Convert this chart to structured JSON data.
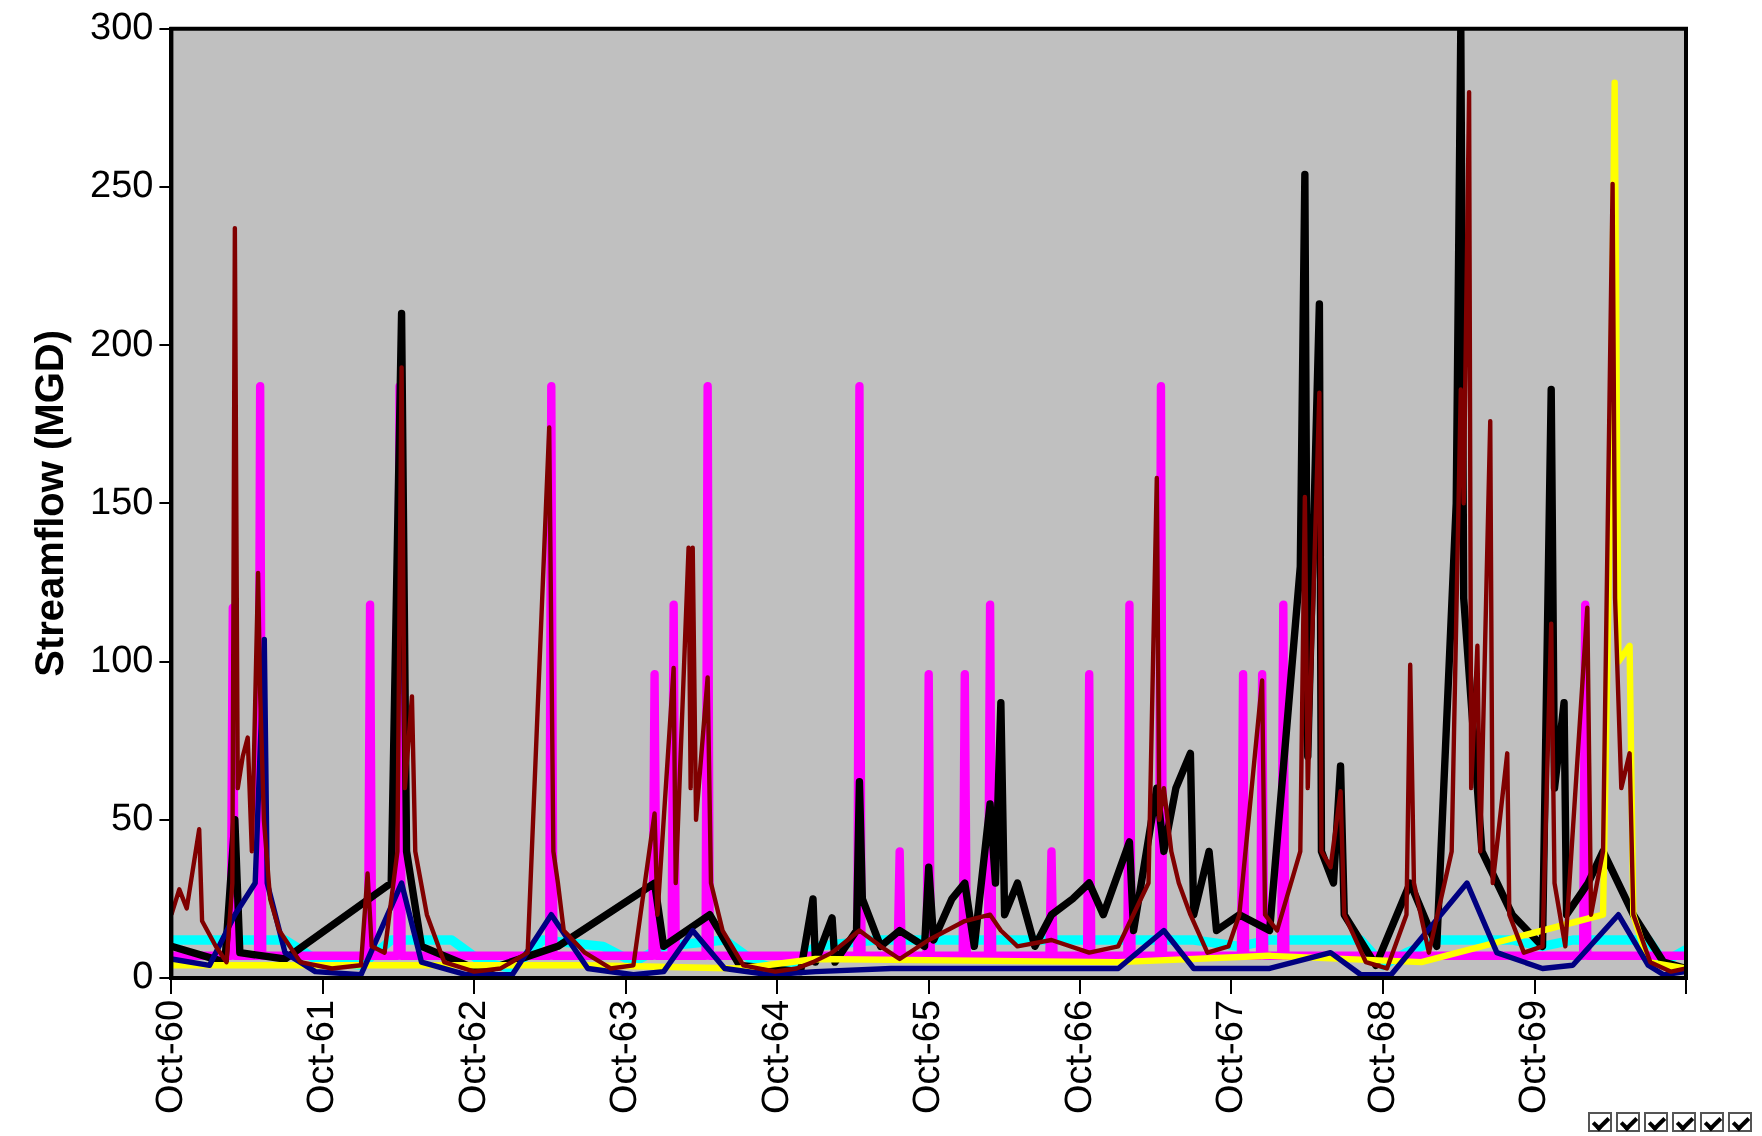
{
  "chart_data": {
    "type": "line",
    "ylabel": "Streamflow (MGD)",
    "xlim": [
      "1960-10",
      "1970-10"
    ],
    "xticks": [
      {
        "value": "1960-10",
        "label": "Oct-60"
      },
      {
        "value": "1961-10",
        "label": "Oct-61"
      },
      {
        "value": "1962-10",
        "label": "Oct-62"
      },
      {
        "value": "1963-10",
        "label": "Oct-63"
      },
      {
        "value": "1964-10",
        "label": "Oct-64"
      },
      {
        "value": "1965-10",
        "label": "Oct-65"
      },
      {
        "value": "1966-10",
        "label": "Oct-66"
      },
      {
        "value": "1967-10",
        "label": "Oct-67"
      },
      {
        "value": "1968-10",
        "label": "Oct-68"
      },
      {
        "value": "1969-10",
        "label": "Oct-69"
      },
      {
        "value": "1970-10",
        "label": null
      }
    ],
    "ylim": [
      0,
      300
    ],
    "yticks": [
      0,
      50,
      100,
      150,
      200,
      250,
      300
    ],
    "legend": false,
    "series": [
      {
        "color": "#800000",
        "x": [
          "1960-10-01",
          "1960-10-20",
          "1960-11-07",
          "1960-12-07",
          "1960-12-14",
          "1961-01-16",
          "1961-02-11",
          "1961-02-25",
          "1961-03-03",
          "1961-03-10",
          "1961-03-22",
          "1961-04-03",
          "1961-04-13",
          "1961-04-28",
          "1961-05-03",
          "1961-05-12",
          "1961-05-27",
          "1961-06-18",
          "1961-08-08",
          "1961-10-23",
          "1962-01-01",
          "1962-01-17",
          "1962-01-27",
          "1962-02-27",
          "1962-03-30",
          "1962-04-09",
          "1962-04-17",
          "1962-05-04",
          "1962-05-12",
          "1962-06-09",
          "1962-07-21",
          "1962-10-01",
          "1962-12-04",
          "1963-02-07",
          "1963-03-31",
          "1963-04-10",
          "1963-04-21",
          "1963-05-05",
          "1963-06-25",
          "1963-08-26",
          "1963-10-20",
          "1963-12-10",
          "1963-12-17",
          "1964-01-25",
          "1964-01-30",
          "1964-03-01",
          "1964-03-06",
          "1964-03-11",
          "1964-03-19",
          "1964-04-16",
          "1964-04-24",
          "1964-05-22",
          "1964-07-11",
          "1964-09-26",
          "1964-11-16",
          "1964-12-26",
          "1965-02-10",
          "1965-04-17",
          "1965-06-07",
          "1965-07-23",
          "1965-10-01",
          "1965-12-27",
          "1966-02-26",
          "1966-03-24",
          "1966-05-03",
          "1966-07-24",
          "1966-10-23",
          "1967-01-01",
          "1967-03-15",
          "1967-04-04",
          "1967-04-10",
          "1967-04-21",
          "1967-05-09",
          "1967-05-27",
          "1967-06-24",
          "1967-08-04",
          "1967-09-24",
          "1967-10-20",
          "1967-12-14",
          "1967-12-21",
          "1968-01-19",
          "1968-03-15",
          "1968-03-26",
          "1968-04-02",
          "1968-04-30",
          "1968-05-05",
          "1968-05-27",
          "1968-06-20",
          "1968-06-29",
          "1968-08-20",
          "1968-10-10",
          "1968-11-26",
          "1968-12-05",
          "1968-12-14",
          "1969-01-19",
          "1969-03-15",
          "1969-04-06",
          "1969-04-13",
          "1969-04-26",
          "1969-05-01",
          "1969-05-16",
          "1969-05-23",
          "1969-06-16",
          "1969-06-22",
          "1969-07-27",
          "1969-08-01",
          "1969-09-05",
          "1969-10-20",
          "1969-11-10",
          "1969-11-18",
          "1969-12-14",
          "1970-02-05",
          "1970-02-14",
          "1970-03-15",
          "1970-04-07",
          "1970-04-13",
          "1970-04-28",
          "1970-05-18",
          "1970-05-27",
          "1970-07-07",
          "1970-08-26",
          "1970-10-01"
        ],
        "values": [
          20,
          28,
          22,
          47,
          18,
          10,
          5,
          30,
          237,
          60,
          70,
          76,
          40,
          128,
          90,
          50,
          25,
          15,
          5,
          3,
          4,
          33,
          10,
          8,
          40,
          193,
          60,
          89,
          40,
          20,
          5,
          2,
          3,
          8,
          174,
          40,
          30,
          15,
          8,
          3,
          4,
          52,
          20,
          98,
          30,
          136,
          60,
          136,
          50,
          95,
          30,
          15,
          4,
          2,
          3,
          5,
          8,
          15,
          10,
          6,
          12,
          18,
          20,
          15,
          10,
          12,
          8,
          10,
          30,
          158,
          50,
          60,
          40,
          30,
          20,
          8,
          10,
          20,
          94,
          20,
          15,
          40,
          152,
          60,
          185,
          40,
          35,
          59,
          20,
          5,
          3,
          20,
          99,
          30,
          8,
          40,
          186,
          150,
          280,
          60,
          105,
          40,
          176,
          30,
          71,
          20,
          8,
          10,
          112,
          30,
          10,
          117,
          20,
          40,
          251,
          120,
          60,
          71,
          20,
          5,
          2,
          3
        ]
      },
      {
        "color": "#000080",
        "x": [
          "1960-10-01",
          "1961-01-01",
          "1961-03-03",
          "1961-04-21",
          "1961-05-13",
          "1961-05-20",
          "1961-07-02",
          "1961-09-13",
          "1962-01-01",
          "1962-04-09",
          "1962-05-27",
          "1962-09-13",
          "1963-01-01",
          "1963-04-05",
          "1963-07-02",
          "1963-10-20",
          "1964-01-01",
          "1964-03-11",
          "1964-05-27",
          "1964-09-13",
          "1965-01-01",
          "1965-07-02",
          "1966-01-01",
          "1966-07-02",
          "1967-01-01",
          "1967-04-21",
          "1967-07-02",
          "1968-01-01",
          "1968-05-27",
          "1968-08-08",
          "1968-10-20",
          "1969-04-21",
          "1969-07-02",
          "1969-10-20",
          "1970-01-01",
          "1970-04-21",
          "1970-07-02",
          "1970-08-08",
          "1970-10-01"
        ],
        "values": [
          6,
          4,
          20,
          30,
          107,
          30,
          8,
          2,
          1,
          30,
          5,
          1,
          1,
          20,
          3,
          1,
          2,
          15,
          3,
          1,
          2,
          3,
          3,
          3,
          3,
          15,
          3,
          3,
          8,
          1,
          1,
          30,
          8,
          3,
          4,
          20,
          4,
          1,
          2
        ]
      },
      {
        "color": "#ffff00",
        "x": [
          "1960-10-01",
          "1963-07-02",
          "1964-07-02",
          "1965-01-01",
          "1967-01-01",
          "1968-01-01",
          "1969-01-01",
          "1970-03-15",
          "1970-04-02",
          "1970-04-12",
          "1970-04-21",
          "1970-05-18",
          "1970-05-27",
          "1970-07-02",
          "1970-10-01"
        ],
        "values": [
          4,
          4,
          3,
          6,
          5,
          7,
          5,
          20,
          160,
          283,
          100,
          105,
          20,
          5,
          3
        ]
      },
      {
        "color": "#000000",
        "x": [
          "1960-10-01",
          "1961-02-07",
          "1961-03-03",
          "1961-03-15",
          "1961-07-02",
          "1962-03-15",
          "1962-04-09",
          "1962-04-21",
          "1962-05-27",
          "1962-10-20",
          "1963-04-21",
          "1963-12-10",
          "1964-01-01",
          "1964-04-21",
          "1964-07-02",
          "1964-11-26",
          "1964-12-26",
          "1965-01-01",
          "1965-02-10",
          "1965-02-17",
          "1965-04-10",
          "1965-04-17",
          "1965-04-24",
          "1965-06-07",
          "1965-07-23",
          "1965-09-21",
          "1965-10-01",
          "1965-10-13",
          "1965-11-26",
          "1965-12-27",
          "1966-01-19",
          "1966-02-26",
          "1966-03-11",
          "1966-03-24",
          "1966-04-02",
          "1966-05-03",
          "1966-06-14",
          "1966-07-24",
          "1966-09-13",
          "1966-10-23",
          "1966-11-26",
          "1967-01-28",
          "1967-02-07",
          "1967-04-04",
          "1967-04-21",
          "1967-05-20",
          "1967-06-24",
          "1967-07-02",
          "1967-08-08",
          "1967-08-26",
          "1967-10-20",
          "1968-01-01",
          "1968-03-15",
          "1968-03-26",
          "1968-04-02",
          "1968-04-30",
          "1968-05-05",
          "1968-06-03",
          "1968-06-20",
          "1968-06-29",
          "1968-09-13",
          "1968-12-05",
          "1969-02-07",
          "1969-03-26",
          "1969-04-06",
          "1969-04-13",
          "1969-05-27",
          "1969-08-08",
          "1969-10-20",
          "1969-11-10",
          "1969-11-18",
          "1969-12-11",
          "1969-12-17",
          "1970-02-07",
          "1970-03-15",
          "1970-05-27",
          "1970-08-08",
          "1970-10-01"
        ],
        "values": [
          10,
          5,
          50,
          8,
          6,
          30,
          210,
          40,
          10,
          2,
          10,
          30,
          10,
          20,
          4,
          2,
          25,
          5,
          19,
          5,
          15,
          62,
          25,
          10,
          15,
          10,
          35,
          12,
          25,
          30,
          10,
          55,
          30,
          87,
          20,
          30,
          10,
          20,
          25,
          30,
          20,
          43,
          15,
          60,
          40,
          60,
          71,
          20,
          40,
          15,
          20,
          15,
          130,
          254,
          70,
          213,
          40,
          30,
          67,
          20,
          4,
          30,
          10,
          150,
          300,
          120,
          40,
          20,
          10,
          186,
          60,
          87,
          20,
          30,
          40,
          20,
          5,
          3
        ]
      },
      {
        "color": "#ff00ff",
        "x": [
          "1960-10-01",
          "1961-02-21",
          "1961-02-26",
          "1961-03-03",
          "1961-04-28",
          "1961-05-03",
          "1961-05-08",
          "1962-01-18",
          "1962-01-23",
          "1962-01-28",
          "1962-03-30",
          "1962-04-04",
          "1962-04-09",
          "1963-03-31",
          "1963-04-05",
          "1963-04-10",
          "1963-12-05",
          "1963-12-10",
          "1963-12-15",
          "1964-01-20",
          "1964-01-25",
          "1964-01-30",
          "1964-04-11",
          "1964-04-16",
          "1964-04-21",
          "1965-04-12",
          "1965-04-17",
          "1965-04-22",
          "1965-07-18",
          "1965-07-23",
          "1965-07-28",
          "1965-09-26",
          "1965-10-01",
          "1965-10-06",
          "1965-12-22",
          "1965-12-27",
          "1966-01-01",
          "1966-02-21",
          "1966-02-26",
          "1966-03-03",
          "1966-07-19",
          "1966-07-24",
          "1966-07-29",
          "1966-10-18",
          "1966-10-23",
          "1966-10-28",
          "1967-01-23",
          "1967-01-28",
          "1967-02-02",
          "1967-04-09",
          "1967-04-14",
          "1967-04-19",
          "1967-10-24",
          "1967-10-29",
          "1967-11-03",
          "1967-12-09",
          "1967-12-14",
          "1967-12-19",
          "1968-01-29",
          "1968-02-03",
          "1968-02-08",
          "1970-01-26",
          "1970-01-31",
          "1970-02-05",
          "1970-10-01"
        ],
        "values": [
          7,
          7,
          117,
          7,
          7,
          187,
          7,
          7,
          118,
          7,
          7,
          187,
          7,
          7,
          187,
          7,
          7,
          96,
          7,
          7,
          118,
          7,
          7,
          187,
          7,
          7,
          187,
          7,
          7,
          40,
          7,
          7,
          96,
          7,
          7,
          96,
          7,
          7,
          118,
          7,
          7,
          40,
          7,
          7,
          96,
          7,
          7,
          118,
          7,
          7,
          187,
          7,
          7,
          96,
          7,
          7,
          96,
          7,
          7,
          118,
          7,
          7,
          118,
          7,
          7
        ]
      },
      {
        "color": "#00ffff",
        "x": [
          "1960-10-01",
          "1961-07-02",
          "1961-09-13",
          "1962-01-01",
          "1962-03-15",
          "1962-08-08",
          "1962-10-20",
          "1963-01-01",
          "1963-03-15",
          "1963-08-08",
          "1963-10-20",
          "1964-01-01",
          "1964-05-27",
          "1964-08-08",
          "1964-10-20",
          "1965-01-01",
          "1965-05-27",
          "1966-01-01",
          "1966-07-02",
          "1967-01-01",
          "1967-07-02",
          "1967-10-20",
          "1968-01-01",
          "1968-08-08",
          "1968-10-01",
          "1968-11-26",
          "1969-02-07",
          "1969-08-08",
          "1969-10-20",
          "1970-01-01",
          "1970-07-02",
          "1970-08-08",
          "1970-10-01"
        ],
        "values": [
          12,
          12,
          6,
          4,
          12,
          12,
          5,
          3,
          12,
          10,
          5,
          10,
          12,
          5,
          2,
          10,
          12,
          12,
          12,
          12,
          12,
          10,
          12,
          12,
          4,
          8,
          12,
          12,
          10,
          12,
          12,
          5,
          9
        ]
      }
    ]
  }
}
